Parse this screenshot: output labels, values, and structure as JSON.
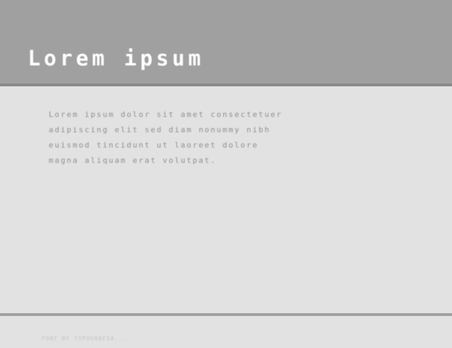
{
  "header": {
    "title": "Lorem  ipsum",
    "background_color": "#a0a0a0",
    "title_color": "#ffffff",
    "title_fontsize": 30
  },
  "content": {
    "body_text": "Lorem ipsum dolor sit amet  consectetuer\nadipiscing elit   sed diam nonummy nibh\neuismod tincidunt ut laoreet dolore\nmagna aliquam erat volutpat.",
    "text_color": "#929292",
    "background_color": "#e2e2e2",
    "fontsize": 11
  },
  "footer": {
    "text": "FONT BY TYPOGRAFIA...",
    "text_color": "#c5c5c5",
    "fontsize": 8
  },
  "dividers": {
    "top_color": "#8a8a8a",
    "bottom_color": "#a0a0a0"
  }
}
